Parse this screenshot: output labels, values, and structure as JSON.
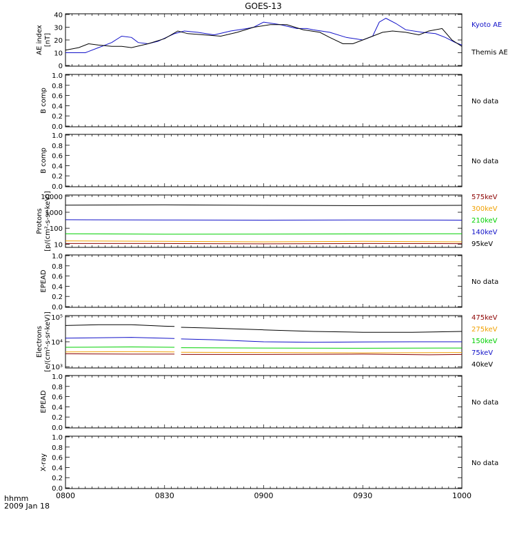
{
  "title": "GOES-13",
  "footer": {
    "left_top": "hhmm",
    "left_bottom": "2009 Jan 18"
  },
  "time_ticks": [
    "0800",
    "0830",
    "0900",
    "0930",
    "1000"
  ],
  "colors": {
    "black": "#000000",
    "blue": "#1010c8",
    "green": "#00d000",
    "orange": "#f0a000",
    "darkred": "#8b0000"
  },
  "panels": [
    {
      "type": "line",
      "ylabel": [
        "AE index",
        "[nT]"
      ],
      "ticks": [
        "0",
        "10",
        "20",
        "30",
        "40"
      ],
      "ylim": [
        0,
        40
      ],
      "legend": [
        {
          "label": "Kyoto AE",
          "color": "#1010c8"
        },
        {
          "label": "Themis AE",
          "color": "#000000"
        }
      ]
    },
    {
      "type": "empty",
      "ylabel": [
        "B comp"
      ],
      "ticks": [
        "0.0",
        "0.2",
        "0.4",
        "0.6",
        "0.8",
        "1.0"
      ],
      "note": "No data"
    },
    {
      "type": "empty",
      "ylabel": [
        "B comp"
      ],
      "ticks": [
        "0.0",
        "0.2",
        "0.4",
        "0.6",
        "0.8",
        "1.0"
      ],
      "note": "No data"
    },
    {
      "type": "log",
      "ylabel": [
        "Protons",
        "[p/(cm²-s-sr-keV)]"
      ],
      "ticks": [
        "10",
        "100",
        "1000",
        "10000"
      ],
      "legend": [
        {
          "label": "575keV",
          "color": "#8b0000"
        },
        {
          "label": "300keV",
          "color": "#f0a000"
        },
        {
          "label": "210keV",
          "color": "#00d000"
        },
        {
          "label": "140keV",
          "color": "#1010c8"
        },
        {
          "label": "95keV",
          "color": "#000000"
        }
      ]
    },
    {
      "type": "empty",
      "ylabel": [
        "EPEAD"
      ],
      "ticks": [
        "0.0",
        "0.2",
        "0.4",
        "0.6",
        "0.8",
        "1.0"
      ],
      "note": "No data"
    },
    {
      "type": "log",
      "ylabel": [
        "Electrons",
        "[e/(cm²-s-sr-keV)]"
      ],
      "ticks": [
        "10³",
        "10⁴",
        "10⁵"
      ],
      "legend": [
        {
          "label": "475keV",
          "color": "#8b0000"
        },
        {
          "label": "275keV",
          "color": "#f0a000"
        },
        {
          "label": "150keV",
          "color": "#00d000"
        },
        {
          "label": "75keV",
          "color": "#1010c8"
        },
        {
          "label": "40keV",
          "color": "#000000"
        }
      ]
    },
    {
      "type": "empty",
      "ylabel": [
        "EPEAD"
      ],
      "ticks": [
        "0.0",
        "0.2",
        "0.4",
        "0.6",
        "0.8",
        "1.0"
      ],
      "note": "No data"
    },
    {
      "type": "empty",
      "ylabel": [
        "X-ray"
      ],
      "ticks": [
        "0.0",
        "0.2",
        "0.4",
        "0.6",
        "0.8",
        "1.0"
      ],
      "note": "No data"
    }
  ],
  "chart_data": [
    {
      "type": "line",
      "xlabel": "hhmm",
      "ylabel": "AE index [nT]",
      "xlim": [
        0,
        120
      ],
      "ylim": [
        0,
        40
      ],
      "x_unit": "minutes after 0800 UT",
      "series": [
        {
          "name": "Kyoto AE",
          "color": "#1010c8",
          "x": [
            0,
            6,
            10,
            14,
            17,
            20,
            22,
            25,
            28,
            33,
            36,
            40,
            45,
            50,
            55,
            57,
            60,
            65,
            70,
            73,
            75,
            80,
            85,
            90,
            93,
            95,
            97,
            100,
            103,
            108,
            112,
            115,
            118,
            120
          ],
          "y": [
            10,
            10,
            14,
            18,
            23,
            22,
            18,
            17,
            19,
            25,
            27,
            26,
            24,
            27,
            29,
            30,
            34,
            32,
            29,
            29,
            28,
            26,
            22,
            20,
            23,
            34,
            37,
            33,
            28,
            26,
            25,
            22,
            18,
            16
          ]
        },
        {
          "name": "Themis AE",
          "color": "#000000",
          "x": [
            0,
            4,
            7,
            10,
            14,
            17,
            20,
            25,
            30,
            34,
            37,
            42,
            47,
            52,
            57,
            62,
            67,
            72,
            77,
            80,
            84,
            87,
            90,
            93,
            96,
            99,
            103,
            107,
            110,
            114,
            117,
            120
          ],
          "y": [
            12,
            14,
            17,
            16,
            15,
            15,
            14,
            17,
            21,
            27,
            25,
            24,
            23,
            26,
            30,
            32,
            32,
            28,
            26,
            22,
            17,
            17,
            20,
            23,
            26,
            27,
            26,
            24,
            27,
            29,
            20,
            15
          ]
        }
      ]
    },
    {
      "type": "line",
      "ylabel": "Protons [p/(cm²-s-sr-keV)]",
      "yscale": "log",
      "ylim": [
        10,
        10000
      ],
      "xlim": [
        0,
        120
      ],
      "series": [
        {
          "name": "95keV",
          "color": "#000000",
          "x": [
            0,
            30,
            60,
            90,
            120
          ],
          "y": [
            2800,
            2900,
            2700,
            2600,
            2700
          ]
        },
        {
          "name": "140keV",
          "color": "#1010c8",
          "x": [
            0,
            30,
            60,
            90,
            120
          ],
          "y": [
            340,
            330,
            320,
            330,
            320
          ]
        },
        {
          "name": "210keV",
          "color": "#00d000",
          "x": [
            0,
            30,
            60,
            90,
            120
          ],
          "y": [
            45,
            42,
            43,
            44,
            45
          ]
        },
        {
          "name": "300keV",
          "color": "#f0a000",
          "x": [
            0,
            30,
            60,
            90,
            120
          ],
          "y": [
            16,
            15,
            14,
            15,
            14
          ]
        },
        {
          "name": "575keV",
          "color": "#8b0000",
          "x": [
            0,
            30,
            60,
            90,
            120
          ],
          "y": [
            11,
            11,
            10.5,
            11,
            10.8
          ]
        }
      ]
    },
    {
      "type": "line",
      "ylabel": "Electrons [e/(cm²-s-sr-keV)]",
      "yscale": "log",
      "ylim": [
        1000,
        100000
      ],
      "xlim": [
        0,
        120
      ],
      "data_gap_x": [
        33,
        35
      ],
      "series": [
        {
          "name": "40keV",
          "color": "#000000",
          "x": [
            0,
            10,
            20,
            30,
            33,
            35,
            45,
            60,
            75,
            90,
            105,
            120
          ],
          "y": [
            45000,
            48000,
            48000,
            42000,
            41000,
            38000,
            35000,
            30000,
            26000,
            24000,
            24000,
            26000
          ]
        },
        {
          "name": "75keV",
          "color": "#1010c8",
          "x": [
            0,
            20,
            33,
            35,
            45,
            60,
            75,
            90,
            105,
            120
          ],
          "y": [
            14000,
            15000,
            13500,
            13000,
            12000,
            10000,
            9500,
            9800,
            10000,
            10000
          ]
        },
        {
          "name": "150keV",
          "color": "#00d000",
          "x": [
            0,
            20,
            33,
            35,
            60,
            90,
            120
          ],
          "y": [
            6000,
            6200,
            6000,
            5800,
            5600,
            5500,
            5600
          ]
        },
        {
          "name": "275keV",
          "color": "#f0a000",
          "x": [
            0,
            20,
            33,
            35,
            60,
            90,
            120
          ],
          "y": [
            3900,
            4000,
            3900,
            3800,
            3700,
            3600,
            3700
          ]
        },
        {
          "name": "475keV",
          "color": "#8b0000",
          "x": [
            0,
            20,
            33,
            35,
            60,
            90,
            110,
            120
          ],
          "y": [
            3300,
            3200,
            3200,
            3100,
            3100,
            3200,
            3000,
            3100
          ]
        }
      ]
    }
  ]
}
